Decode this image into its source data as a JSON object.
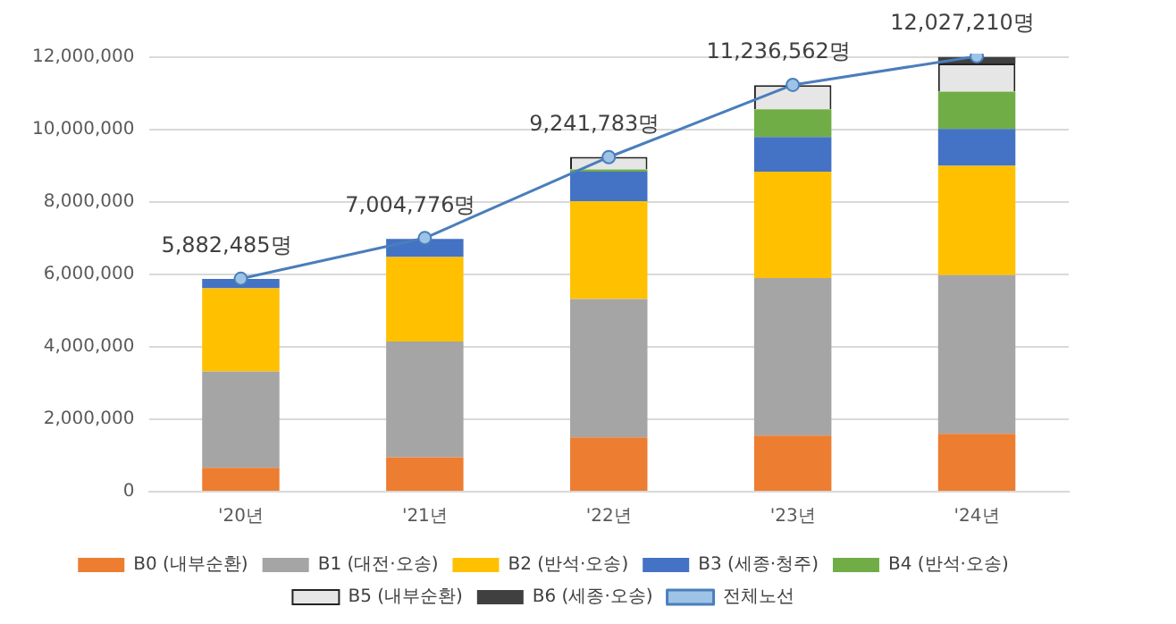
{
  "chart_data": {
    "type": "bar",
    "stacked": true,
    "categories": [
      "'20년",
      "'21년",
      "'22년",
      "'23년",
      "'24년"
    ],
    "series": [
      {
        "name": "B0 (내부순환)",
        "color": "#ed7d31",
        "values": [
          660000,
          950000,
          1500000,
          1550000,
          1600000
        ]
      },
      {
        "name": "B1 (대전·오송)",
        "color": "#a5a5a5",
        "values": [
          2660000,
          3200000,
          3820000,
          4350000,
          4380000
        ]
      },
      {
        "name": "B2 (반석·오송)",
        "color": "#ffc000",
        "values": [
          2300000,
          2330000,
          2700000,
          2940000,
          3020000
        ]
      },
      {
        "name": "B3 (세종·청주)",
        "color": "#4472c4",
        "values": [
          260000,
          500000,
          820000,
          960000,
          1020000
        ]
      },
      {
        "name": "B4 (반석·오송)",
        "color": "#70ad47",
        "values": [
          null,
          null,
          60000,
          760000,
          1030000
        ]
      },
      {
        "name": "B5 (내부순환)",
        "color": "#e7e6e6",
        "values": [
          null,
          null,
          350000,
          670000,
          780000
        ]
      },
      {
        "name": "B6 (세종·오송)",
        "color": "#404040",
        "values": [
          null,
          null,
          null,
          null,
          180000
        ]
      },
      {
        "name": "전체노선",
        "type": "line",
        "color": "#4a7ebb",
        "values": [
          5882485,
          7004776,
          9241783,
          11236562,
          12027210
        ],
        "value_labels": [
          "5,882,485명",
          "7,004,776명",
          "9,241,783명",
          "11,236,562명",
          "12,027,210명"
        ]
      }
    ],
    "ylim": [
      0,
      12100000
    ],
    "yticks": [
      {
        "value": 0,
        "label": "0"
      },
      {
        "value": 2000000,
        "label": "2,000,000"
      },
      {
        "value": 4000000,
        "label": "4,000,000"
      },
      {
        "value": 6000000,
        "label": "6,000,000"
      },
      {
        "value": 8000000,
        "label": "8,000,000"
      },
      {
        "value": 10000000,
        "label": "10,000,000"
      },
      {
        "value": 12000000,
        "label": "12,000,000"
      }
    ],
    "grid": "y",
    "legend": "bottom",
    "marker": "circle"
  }
}
